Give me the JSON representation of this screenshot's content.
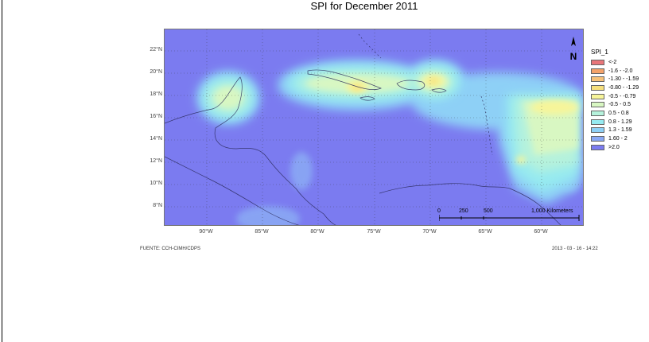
{
  "title": "SPI  for December 2011",
  "lat_labels": [
    "22°N",
    "20°N",
    "18°N",
    "16°N",
    "14°N",
    "12°N",
    "10°N",
    "8°N"
  ],
  "lon_labels": [
    "90°W",
    "85°W",
    "80°W",
    "75°W",
    "70°W",
    "65°W",
    "60°W"
  ],
  "legend": {
    "title": "SPI_1",
    "items": [
      {
        "label": "<-2",
        "color": "#e8767a"
      },
      {
        "label": "-1.6 - -2.0",
        "color": "#f4a36b"
      },
      {
        "label": "-1.30 - -1.59",
        "color": "#f7c27a"
      },
      {
        "label": "-0.80 - -1.29",
        "color": "#f6e07e"
      },
      {
        "label": "-0.5 - -0.79",
        "color": "#f7f59a"
      },
      {
        "label": "-0.5 - 0.5",
        "color": "#d8f7c2"
      },
      {
        "label": "0.5 - 0.8",
        "color": "#b6f2dc"
      },
      {
        "label": "0.8 - 1.29",
        "color": "#96eaf0"
      },
      {
        "label": "1.3 - 1.59",
        "color": "#8ed0f6"
      },
      {
        "label": "1.60 - 2",
        "color": "#8aa8f4"
      },
      {
        "label": ">2.0",
        "color": "#7b7bf0"
      }
    ]
  },
  "scale": {
    "ticks": [
      "0",
      "250",
      "500"
    ],
    "end_label": "1,000 Kilometers"
  },
  "north_label": "N",
  "footer": {
    "left": "FUENTE: CCH-CIMH/CDPS",
    "right": "2013 - 03 - 16 - 14:22"
  }
}
